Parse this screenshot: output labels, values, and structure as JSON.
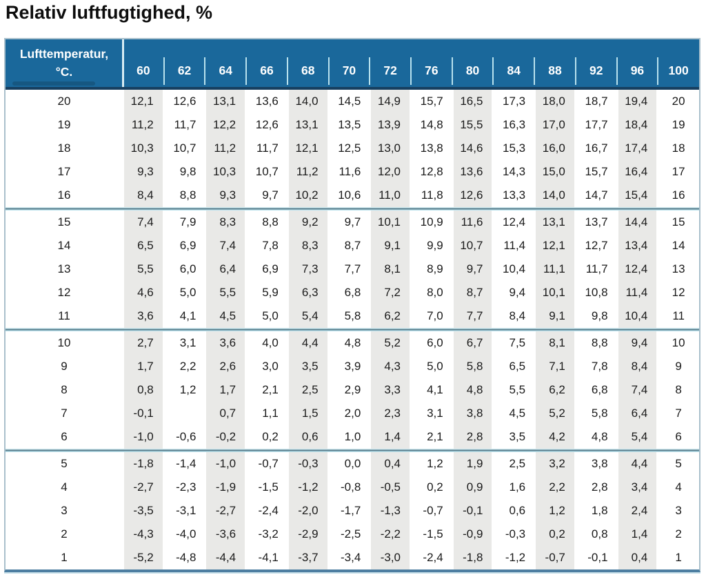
{
  "title": "Relativ luftfugtighed, %",
  "table": {
    "corner_header_line1": "Lufttemperatur,",
    "corner_header_line2": "°C.",
    "humidity_columns": [
      "60",
      "62",
      "64",
      "66",
      "68",
      "70",
      "72",
      "76",
      "80",
      "84",
      "88",
      "92",
      "96",
      "100"
    ],
    "row_groups": [
      {
        "rows": [
          {
            "temp": "20",
            "values": [
              "12,1",
              "12,6",
              "13,1",
              "13,6",
              "14,0",
              "14,5",
              "14,9",
              "15,7",
              "16,5",
              "17,3",
              "18,0",
              "18,7",
              "19,4",
              "20"
            ]
          },
          {
            "temp": "19",
            "values": [
              "11,2",
              "11,7",
              "12,2",
              "12,6",
              "13,1",
              "13,5",
              "13,9",
              "14,8",
              "15,5",
              "16,3",
              "17,0",
              "17,7",
              "18,4",
              "19"
            ]
          },
          {
            "temp": "18",
            "values": [
              "10,3",
              "10,7",
              "11,2",
              "11,7",
              "12,1",
              "12,5",
              "13,0",
              "13,8",
              "14,6",
              "15,3",
              "16,0",
              "16,7",
              "17,4",
              "18"
            ]
          },
          {
            "temp": "17",
            "values": [
              "9,3",
              "9,8",
              "10,3",
              "10,7",
              "11,2",
              "11,6",
              "12,0",
              "12,8",
              "13,6",
              "14,3",
              "15,0",
              "15,7",
              "16,4",
              "17"
            ]
          },
          {
            "temp": "16",
            "values": [
              "8,4",
              "8,8",
              "9,3",
              "9,7",
              "10,2",
              "10,6",
              "11,0",
              "11,8",
              "12,6",
              "13,3",
              "14,0",
              "14,7",
              "15,4",
              "16"
            ]
          }
        ]
      },
      {
        "rows": [
          {
            "temp": "15",
            "values": [
              "7,4",
              "7,9",
              "8,3",
              "8,8",
              "9,2",
              "9,7",
              "10,1",
              "10,9",
              "11,6",
              "12,4",
              "13,1",
              "13,7",
              "14,4",
              "15"
            ]
          },
          {
            "temp": "14",
            "values": [
              "6,5",
              "6,9",
              "7,4",
              "7,8",
              "8,3",
              "8,7",
              "9,1",
              "9,9",
              "10,7",
              "11,4",
              "12,1",
              "12,7",
              "13,4",
              "14"
            ]
          },
          {
            "temp": "13",
            "values": [
              "5,5",
              "6,0",
              "6,4",
              "6,9",
              "7,3",
              "7,7",
              "8,1",
              "8,9",
              "9,7",
              "10,4",
              "11,1",
              "11,7",
              "12,4",
              "13"
            ]
          },
          {
            "temp": "12",
            "values": [
              "4,6",
              "5,0",
              "5,5",
              "5,9",
              "6,3",
              "6,8",
              "7,2",
              "8,0",
              "8,7",
              "9,4",
              "10,1",
              "10,8",
              "11,4",
              "12"
            ]
          },
          {
            "temp": "11",
            "values": [
              "3,6",
              "4,1",
              "4,5",
              "5,0",
              "5,4",
              "5,8",
              "6,2",
              "7,0",
              "7,7",
              "8,4",
              "9,1",
              "9,8",
              "10,4",
              "11"
            ]
          }
        ]
      },
      {
        "rows": [
          {
            "temp": "10",
            "values": [
              "2,7",
              "3,1",
              "3,6",
              "4,0",
              "4,4",
              "4,8",
              "5,2",
              "6,0",
              "6,7",
              "7,5",
              "8,1",
              "8,8",
              "9,4",
              "10"
            ]
          },
          {
            "temp": "9",
            "values": [
              "1,7",
              "2,2",
              "2,6",
              "3,0",
              "3,5",
              "3,9",
              "4,3",
              "5,0",
              "5,8",
              "6,5",
              "7,1",
              "7,8",
              "8,4",
              "9"
            ]
          },
          {
            "temp": "8",
            "values": [
              "0,8",
              "1,2",
              "1,7",
              "2,1",
              "2,5",
              "2,9",
              "3,3",
              "4,1",
              "4,8",
              "5,5",
              "6,2",
              "6,8",
              "7,4",
              "8"
            ]
          },
          {
            "temp": "7",
            "values": [
              "-0,1",
              "",
              "0,7",
              "1,1",
              "1,5",
              "2,0",
              "2,3",
              "3,1",
              "3,8",
              "4,5",
              "5,2",
              "5,8",
              "6,4",
              "7"
            ]
          },
          {
            "temp": "6",
            "values": [
              "-1,0",
              "-0,6",
              "-0,2",
              "0,2",
              "0,6",
              "1,0",
              "1,4",
              "2,1",
              "2,8",
              "3,5",
              "4,2",
              "4,8",
              "5,4",
              "6"
            ]
          }
        ]
      },
      {
        "rows": [
          {
            "temp": "5",
            "values": [
              "-1,8",
              "-1,4",
              "-1,0",
              "-0,7",
              "-0,3",
              "0,0",
              "0,4",
              "1,2",
              "1,9",
              "2,5",
              "3,2",
              "3,8",
              "4,4",
              "5"
            ]
          },
          {
            "temp": "4",
            "values": [
              "-2,7",
              "-2,3",
              "-1,9",
              "-1,5",
              "-1,2",
              "-0,8",
              "-0,5",
              "0,2",
              "0,9",
              "1,6",
              "2,2",
              "2,8",
              "3,4",
              "4"
            ]
          },
          {
            "temp": "3",
            "values": [
              "-3,5",
              "-3,1",
              "-2,7",
              "-2,4",
              "-2,0",
              "-1,7",
              "-1,3",
              "-0,7",
              "-0,1",
              "0,6",
              "1,2",
              "1,8",
              "2,4",
              "3"
            ]
          },
          {
            "temp": "2",
            "values": [
              "-4,3",
              "-4,0",
              "-3,6",
              "-3,2",
              "-2,9",
              "-2,5",
              "-2,2",
              "-1,5",
              "-0,9",
              "-0,3",
              "0,2",
              "0,8",
              "1,4",
              "2"
            ]
          },
          {
            "temp": "1",
            "values": [
              "-5,2",
              "-4,8",
              "-4,4",
              "-4,1",
              "-3,7",
              "-3,4",
              "-3,0",
              "-2,4",
              "-1,8",
              "-1,2",
              "-0,7",
              "-0,1",
              "0,4",
              "1"
            ]
          }
        ]
      }
    ],
    "colors": {
      "header_blue": "#1a689b",
      "header_underline": "#173f60",
      "stripe_gray": "#e9e9e7",
      "tick_cyan": "#b9e2ee",
      "separator_dark": "#567d8c",
      "outer_border": "#a9c0cc",
      "bottom_border": "#4d7ea1"
    }
  }
}
